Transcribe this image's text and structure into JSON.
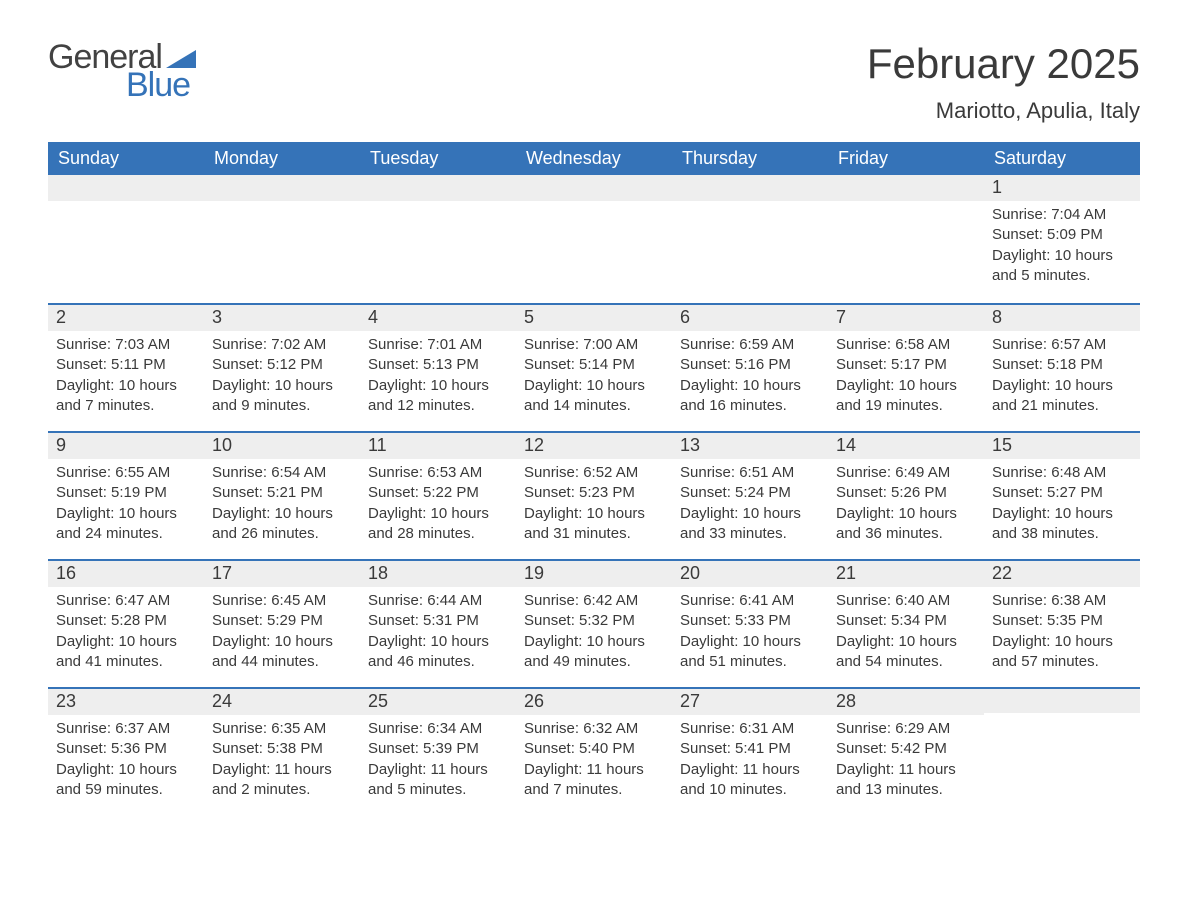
{
  "brand": {
    "word1": "General",
    "word2": "Blue",
    "word1_color": "#424242",
    "word2_color": "#3573b8",
    "sail_color": "#3573b8"
  },
  "header": {
    "title": "February 2025",
    "location": "Mariotto, Apulia, Italy"
  },
  "styling": {
    "header_bg": "#3573b8",
    "header_text": "#ffffff",
    "daynum_bg": "#eeeeee",
    "daynum_border": "#3573b8",
    "body_text": "#3a3a3a",
    "page_bg": "#ffffff",
    "title_fontsize": 42,
    "location_fontsize": 22,
    "dow_fontsize": 18,
    "daynum_fontsize": 18,
    "body_fontsize": 15
  },
  "days_of_week": [
    "Sunday",
    "Monday",
    "Tuesday",
    "Wednesday",
    "Thursday",
    "Friday",
    "Saturday"
  ],
  "weeks": [
    [
      {
        "day": "",
        "lines": []
      },
      {
        "day": "",
        "lines": []
      },
      {
        "day": "",
        "lines": []
      },
      {
        "day": "",
        "lines": []
      },
      {
        "day": "",
        "lines": []
      },
      {
        "day": "",
        "lines": []
      },
      {
        "day": "1",
        "lines": [
          "Sunrise: 7:04 AM",
          "Sunset: 5:09 PM",
          "Daylight: 10 hours and 5 minutes."
        ]
      }
    ],
    [
      {
        "day": "2",
        "lines": [
          "Sunrise: 7:03 AM",
          "Sunset: 5:11 PM",
          "Daylight: 10 hours and 7 minutes."
        ]
      },
      {
        "day": "3",
        "lines": [
          "Sunrise: 7:02 AM",
          "Sunset: 5:12 PM",
          "Daylight: 10 hours and 9 minutes."
        ]
      },
      {
        "day": "4",
        "lines": [
          "Sunrise: 7:01 AM",
          "Sunset: 5:13 PM",
          "Daylight: 10 hours and 12 minutes."
        ]
      },
      {
        "day": "5",
        "lines": [
          "Sunrise: 7:00 AM",
          "Sunset: 5:14 PM",
          "Daylight: 10 hours and 14 minutes."
        ]
      },
      {
        "day": "6",
        "lines": [
          "Sunrise: 6:59 AM",
          "Sunset: 5:16 PM",
          "Daylight: 10 hours and 16 minutes."
        ]
      },
      {
        "day": "7",
        "lines": [
          "Sunrise: 6:58 AM",
          "Sunset: 5:17 PM",
          "Daylight: 10 hours and 19 minutes."
        ]
      },
      {
        "day": "8",
        "lines": [
          "Sunrise: 6:57 AM",
          "Sunset: 5:18 PM",
          "Daylight: 10 hours and 21 minutes."
        ]
      }
    ],
    [
      {
        "day": "9",
        "lines": [
          "Sunrise: 6:55 AM",
          "Sunset: 5:19 PM",
          "Daylight: 10 hours and 24 minutes."
        ]
      },
      {
        "day": "10",
        "lines": [
          "Sunrise: 6:54 AM",
          "Sunset: 5:21 PM",
          "Daylight: 10 hours and 26 minutes."
        ]
      },
      {
        "day": "11",
        "lines": [
          "Sunrise: 6:53 AM",
          "Sunset: 5:22 PM",
          "Daylight: 10 hours and 28 minutes."
        ]
      },
      {
        "day": "12",
        "lines": [
          "Sunrise: 6:52 AM",
          "Sunset: 5:23 PM",
          "Daylight: 10 hours and 31 minutes."
        ]
      },
      {
        "day": "13",
        "lines": [
          "Sunrise: 6:51 AM",
          "Sunset: 5:24 PM",
          "Daylight: 10 hours and 33 minutes."
        ]
      },
      {
        "day": "14",
        "lines": [
          "Sunrise: 6:49 AM",
          "Sunset: 5:26 PM",
          "Daylight: 10 hours and 36 minutes."
        ]
      },
      {
        "day": "15",
        "lines": [
          "Sunrise: 6:48 AM",
          "Sunset: 5:27 PM",
          "Daylight: 10 hours and 38 minutes."
        ]
      }
    ],
    [
      {
        "day": "16",
        "lines": [
          "Sunrise: 6:47 AM",
          "Sunset: 5:28 PM",
          "Daylight: 10 hours and 41 minutes."
        ]
      },
      {
        "day": "17",
        "lines": [
          "Sunrise: 6:45 AM",
          "Sunset: 5:29 PM",
          "Daylight: 10 hours and 44 minutes."
        ]
      },
      {
        "day": "18",
        "lines": [
          "Sunrise: 6:44 AM",
          "Sunset: 5:31 PM",
          "Daylight: 10 hours and 46 minutes."
        ]
      },
      {
        "day": "19",
        "lines": [
          "Sunrise: 6:42 AM",
          "Sunset: 5:32 PM",
          "Daylight: 10 hours and 49 minutes."
        ]
      },
      {
        "day": "20",
        "lines": [
          "Sunrise: 6:41 AM",
          "Sunset: 5:33 PM",
          "Daylight: 10 hours and 51 minutes."
        ]
      },
      {
        "day": "21",
        "lines": [
          "Sunrise: 6:40 AM",
          "Sunset: 5:34 PM",
          "Daylight: 10 hours and 54 minutes."
        ]
      },
      {
        "day": "22",
        "lines": [
          "Sunrise: 6:38 AM",
          "Sunset: 5:35 PM",
          "Daylight: 10 hours and 57 minutes."
        ]
      }
    ],
    [
      {
        "day": "23",
        "lines": [
          "Sunrise: 6:37 AM",
          "Sunset: 5:36 PM",
          "Daylight: 10 hours and 59 minutes."
        ]
      },
      {
        "day": "24",
        "lines": [
          "Sunrise: 6:35 AM",
          "Sunset: 5:38 PM",
          "Daylight: 11 hours and 2 minutes."
        ]
      },
      {
        "day": "25",
        "lines": [
          "Sunrise: 6:34 AM",
          "Sunset: 5:39 PM",
          "Daylight: 11 hours and 5 minutes."
        ]
      },
      {
        "day": "26",
        "lines": [
          "Sunrise: 6:32 AM",
          "Sunset: 5:40 PM",
          "Daylight: 11 hours and 7 minutes."
        ]
      },
      {
        "day": "27",
        "lines": [
          "Sunrise: 6:31 AM",
          "Sunset: 5:41 PM",
          "Daylight: 11 hours and 10 minutes."
        ]
      },
      {
        "day": "28",
        "lines": [
          "Sunrise: 6:29 AM",
          "Sunset: 5:42 PM",
          "Daylight: 11 hours and 13 minutes."
        ]
      },
      {
        "day": "",
        "lines": []
      }
    ]
  ]
}
